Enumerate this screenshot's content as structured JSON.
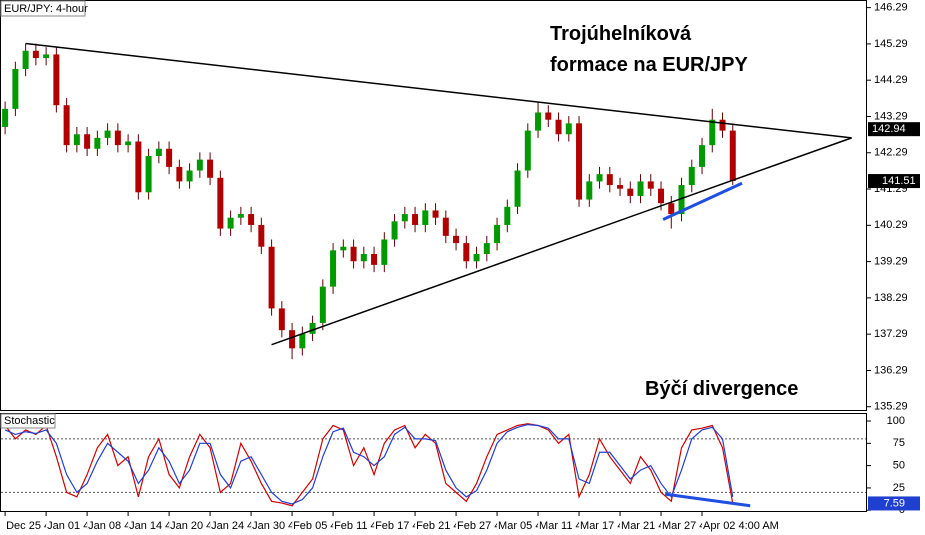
{
  "chart_data": [
    {
      "type": "candlestick",
      "title": "EUR/JPY: 4-hour",
      "annotations": [
        "Trojúhelníková",
        "formace na EUR/JPY",
        "Býčí divergence"
      ],
      "up_color": "#009a00",
      "down_color": "#b00000",
      "xlim": [
        -0.5,
        84
      ],
      "xticks": [
        {
          "value": 0,
          "label": "Dec 25 4:00 PM"
        },
        {
          "value": 4,
          "label": "Jan 01 4:00 PM"
        },
        {
          "value": 8,
          "label": "Jan 08 4:00 AM"
        },
        {
          "value": 12,
          "label": "Jan 14 4:00 AM"
        },
        {
          "value": 16,
          "label": "Jan 20 4:00 AM"
        },
        {
          "value": 20,
          "label": "Jan 24 4:00 AM"
        },
        {
          "value": 24,
          "label": "Jan 30 4:00 AM"
        },
        {
          "value": 28,
          "label": "Feb 05 4:00 AM"
        },
        {
          "value": 32,
          "label": "Feb 11 4:00 AM"
        },
        {
          "value": 36,
          "label": "Feb 17 4:00 AM"
        },
        {
          "value": 40,
          "label": "Feb 21 4:00 AM"
        },
        {
          "value": 44,
          "label": "Feb 27 4:00 AM"
        },
        {
          "value": 48,
          "label": "Mar 05 4:00 AM"
        },
        {
          "value": 52,
          "label": "Mar 11 4:00 AM"
        },
        {
          "value": 56,
          "label": "Mar 17 4:00 AM"
        },
        {
          "value": 60,
          "label": "Mar 21 4:00 AM"
        },
        {
          "value": 64,
          "label": "Mar 27 4:00 AM"
        },
        {
          "value": 68,
          "label": "Apr 02 4:00 AM"
        }
      ],
      "ylim": [
        135.2,
        146.5
      ],
      "yticks": [
        146.29,
        145.29,
        144.29,
        143.29,
        142.29,
        141.29,
        140.29,
        139.29,
        138.29,
        137.29,
        136.29,
        135.29
      ],
      "reference_price": 142.94,
      "open": [
        143.0,
        143.5,
        144.6,
        145.1,
        144.9,
        145.0,
        143.6,
        142.5,
        142.8,
        142.4,
        142.7,
        142.9,
        142.5,
        142.6,
        141.2,
        142.2,
        142.4,
        141.9,
        141.5,
        141.8,
        142.1,
        141.6,
        140.2,
        140.5,
        140.6,
        140.3,
        139.7,
        138.0,
        137.4,
        136.9,
        137.3,
        137.6,
        138.6,
        139.6,
        139.7,
        139.3,
        139.5,
        139.2,
        139.9,
        140.4,
        140.6,
        140.3,
        140.7,
        140.5,
        140.0,
        139.8,
        139.3,
        139.5,
        139.8,
        140.3,
        140.8,
        141.8,
        142.9,
        143.4,
        143.2,
        142.8,
        143.1,
        141.0,
        141.5,
        141.7,
        141.4,
        141.3,
        141.1,
        141.5,
        141.3,
        140.9,
        140.6,
        141.4,
        141.9,
        142.5,
        143.2,
        142.9
      ],
      "high": [
        143.7,
        144.8,
        145.3,
        145.3,
        145.2,
        145.2,
        143.8,
        143.0,
        143.0,
        142.9,
        143.1,
        143.1,
        142.8,
        142.8,
        142.4,
        142.6,
        142.6,
        142.1,
        142.0,
        142.3,
        142.3,
        141.8,
        140.7,
        140.8,
        140.8,
        140.5,
        139.9,
        138.2,
        137.6,
        137.5,
        137.8,
        138.8,
        139.8,
        139.9,
        139.9,
        139.7,
        139.7,
        140.1,
        140.6,
        140.8,
        140.8,
        140.9,
        140.9,
        140.7,
        140.2,
        140.0,
        139.7,
        140.0,
        140.5,
        141.0,
        142.0,
        143.1,
        143.7,
        143.6,
        143.4,
        143.3,
        143.3,
        141.7,
        141.9,
        141.9,
        141.6,
        141.5,
        141.7,
        141.7,
        141.5,
        141.1,
        141.6,
        142.1,
        142.7,
        143.5,
        143.4,
        143.1
      ],
      "low": [
        142.8,
        143.3,
        144.4,
        144.7,
        144.7,
        143.4,
        142.3,
        142.3,
        142.2,
        142.2,
        142.5,
        142.3,
        142.3,
        141.0,
        141.0,
        142.0,
        141.7,
        141.3,
        141.3,
        141.6,
        141.4,
        140.0,
        140.0,
        140.3,
        140.1,
        139.5,
        137.8,
        137.2,
        136.6,
        136.7,
        137.1,
        137.4,
        138.4,
        139.4,
        139.1,
        139.1,
        139.0,
        139.0,
        139.7,
        140.2,
        140.1,
        140.1,
        140.3,
        139.8,
        139.6,
        139.1,
        139.1,
        139.3,
        139.6,
        140.1,
        140.6,
        141.6,
        142.7,
        143.0,
        142.6,
        142.6,
        140.8,
        140.8,
        141.3,
        141.2,
        141.1,
        140.9,
        140.9,
        141.1,
        140.7,
        140.2,
        140.4,
        141.2,
        141.7,
        142.3,
        142.7,
        141.4
      ],
      "close": [
        143.5,
        144.6,
        145.1,
        144.9,
        145.0,
        143.6,
        142.5,
        142.8,
        142.4,
        142.7,
        142.9,
        142.5,
        142.6,
        141.2,
        142.2,
        142.4,
        141.9,
        141.5,
        141.8,
        142.1,
        141.6,
        140.2,
        140.5,
        140.6,
        140.3,
        139.7,
        138.0,
        137.4,
        136.9,
        137.3,
        137.6,
        138.6,
        139.6,
        139.7,
        139.3,
        139.5,
        139.2,
        139.9,
        140.4,
        140.6,
        140.3,
        140.7,
        140.5,
        140.0,
        139.8,
        139.3,
        139.5,
        139.8,
        140.3,
        140.8,
        141.8,
        142.9,
        143.4,
        143.2,
        142.8,
        143.1,
        141.0,
        141.5,
        141.7,
        141.4,
        141.3,
        141.1,
        141.5,
        141.3,
        140.9,
        140.6,
        141.4,
        141.9,
        142.5,
        143.2,
        142.9,
        141.51
      ],
      "trendlines": [
        {
          "color": "#000000",
          "x": [
            2,
            82.6
          ],
          "y": [
            145.3,
            142.7
          ]
        },
        {
          "color": "#000000",
          "x": [
            26,
            82.6
          ],
          "y": [
            137.0,
            142.7
          ]
        },
        {
          "color": "#1f4fe0",
          "x": [
            64.2,
            71.9
          ],
          "y": [
            140.45,
            141.45
          ]
        }
      ]
    },
    {
      "type": "line",
      "title": "Stochastic",
      "ylim": [
        -2,
        109
      ],
      "yticks": [
        100,
        75,
        50,
        25,
        0
      ],
      "levels": [
        80,
        20
      ],
      "series": [
        {
          "color": "#d00000",
          "values": [
            95,
            80,
            90,
            85,
            95,
            60,
            20,
            15,
            40,
            70,
            85,
            50,
            60,
            15,
            60,
            80,
            40,
            25,
            60,
            85,
            70,
            20,
            30,
            75,
            55,
            30,
            10,
            8,
            5,
            20,
            35,
            80,
            95,
            90,
            50,
            70,
            40,
            75,
            90,
            95,
            70,
            85,
            75,
            30,
            20,
            10,
            30,
            60,
            85,
            90,
            95,
            97,
            95,
            90,
            75,
            85,
            15,
            40,
            80,
            60,
            45,
            30,
            60,
            45,
            20,
            10,
            70,
            90,
            92,
            95,
            70,
            7.59
          ]
        },
        {
          "color": "#1f3fd0",
          "values": [
            90,
            85,
            88,
            86,
            90,
            75,
            40,
            20,
            30,
            55,
            75,
            65,
            55,
            30,
            45,
            70,
            55,
            30,
            45,
            75,
            75,
            40,
            25,
            55,
            60,
            40,
            20,
            10,
            7,
            12,
            25,
            60,
            88,
            92,
            65,
            60,
            50,
            60,
            85,
            93,
            80,
            80,
            78,
            45,
            25,
            15,
            22,
            45,
            75,
            88,
            93,
            96,
            95,
            92,
            80,
            80,
            35,
            30,
            65,
            65,
            50,
            35,
            45,
            50,
            30,
            15,
            45,
            80,
            90,
            93,
            80,
            15
          ]
        }
      ],
      "trendlines": [
        {
          "color": "#1f4fe0",
          "x": [
            64.4,
            72.7
          ],
          "y": [
            18,
            5
          ]
        }
      ]
    }
  ]
}
